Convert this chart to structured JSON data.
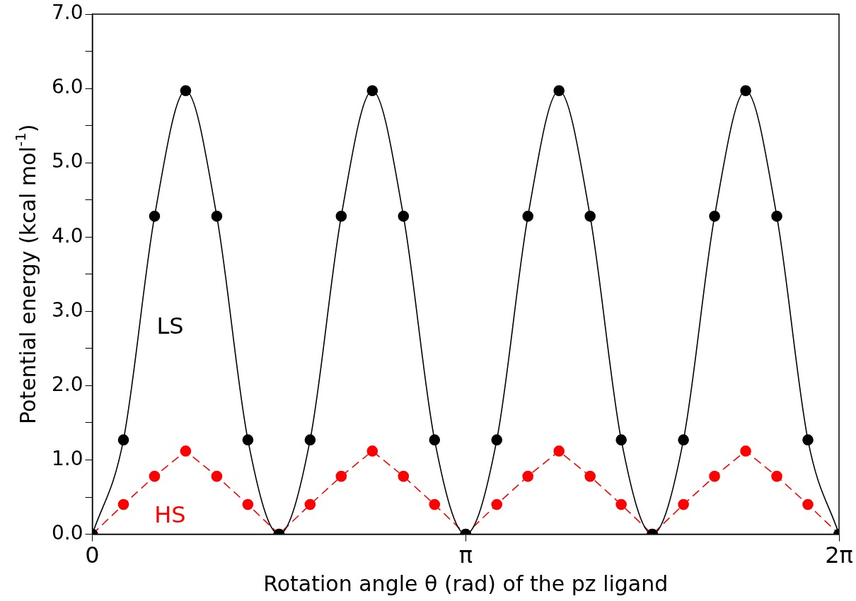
{
  "chart_data": {
    "type": "line",
    "xlabel": "Rotation angle θ (rad) of the pz ligand",
    "ylabel": "Potential energy (kcal mol$^{-1}$)",
    "x": [
      0,
      0.2618,
      0.5236,
      0.7854,
      1.0472,
      1.309,
      1.5708,
      1.8326,
      2.0944,
      2.3562,
      2.618,
      2.8798,
      3.1416,
      3.4034,
      3.6652,
      3.927,
      4.1888,
      4.4506,
      4.7124,
      4.9742,
      5.236,
      5.4978,
      5.7596,
      6.0214,
      6.2832
    ],
    "series": [
      {
        "name": "LS",
        "color": "#000000",
        "line_style": "solid",
        "values": [
          0,
          1.27,
          4.28,
          5.97,
          4.28,
          1.27,
          0,
          1.27,
          4.28,
          5.97,
          4.28,
          1.27,
          0,
          1.27,
          4.28,
          5.97,
          4.28,
          1.27,
          0,
          1.27,
          4.28,
          5.97,
          4.28,
          1.27,
          0
        ]
      },
      {
        "name": "HS",
        "color": "#ff0000",
        "line_style": "dashed",
        "values": [
          0,
          0.4,
          0.78,
          1.12,
          0.78,
          0.4,
          0,
          0.4,
          0.78,
          1.12,
          0.78,
          0.4,
          0,
          0.4,
          0.78,
          1.12,
          0.78,
          0.4,
          0,
          0.4,
          0.78,
          1.12,
          0.78,
          0.4,
          0
        ]
      }
    ],
    "xlim": [
      0,
      6.2832
    ],
    "xticks": [
      0,
      {
        "value": 3.1416,
        "label": "π"
      },
      {
        "value": 6.2832,
        "label": "2π"
      }
    ],
    "ylim": [
      0,
      7
    ],
    "yticks": [
      {
        "value": 0,
        "label": "0.0"
      },
      {
        "value": 0.5,
        "label": null
      },
      {
        "value": 1,
        "label": "1.0"
      },
      {
        "value": 1.5,
        "label": null
      },
      {
        "value": 2,
        "label": "2.0"
      },
      {
        "value": 2.5,
        "label": null
      },
      {
        "value": 3,
        "label": "3.0"
      },
      {
        "value": 3.5,
        "label": null
      },
      {
        "value": 4,
        "label": "4.0"
      },
      {
        "value": 4.5,
        "label": null
      },
      {
        "value": 5,
        "label": "5.0"
      },
      {
        "value": 5.5,
        "label": null
      },
      {
        "value": 6,
        "label": "6.0"
      },
      {
        "value": 6.5,
        "label": null
      },
      {
        "value": 7,
        "label": "7.0"
      }
    ],
    "grid": false,
    "legend": false,
    "marker": "circle"
  }
}
